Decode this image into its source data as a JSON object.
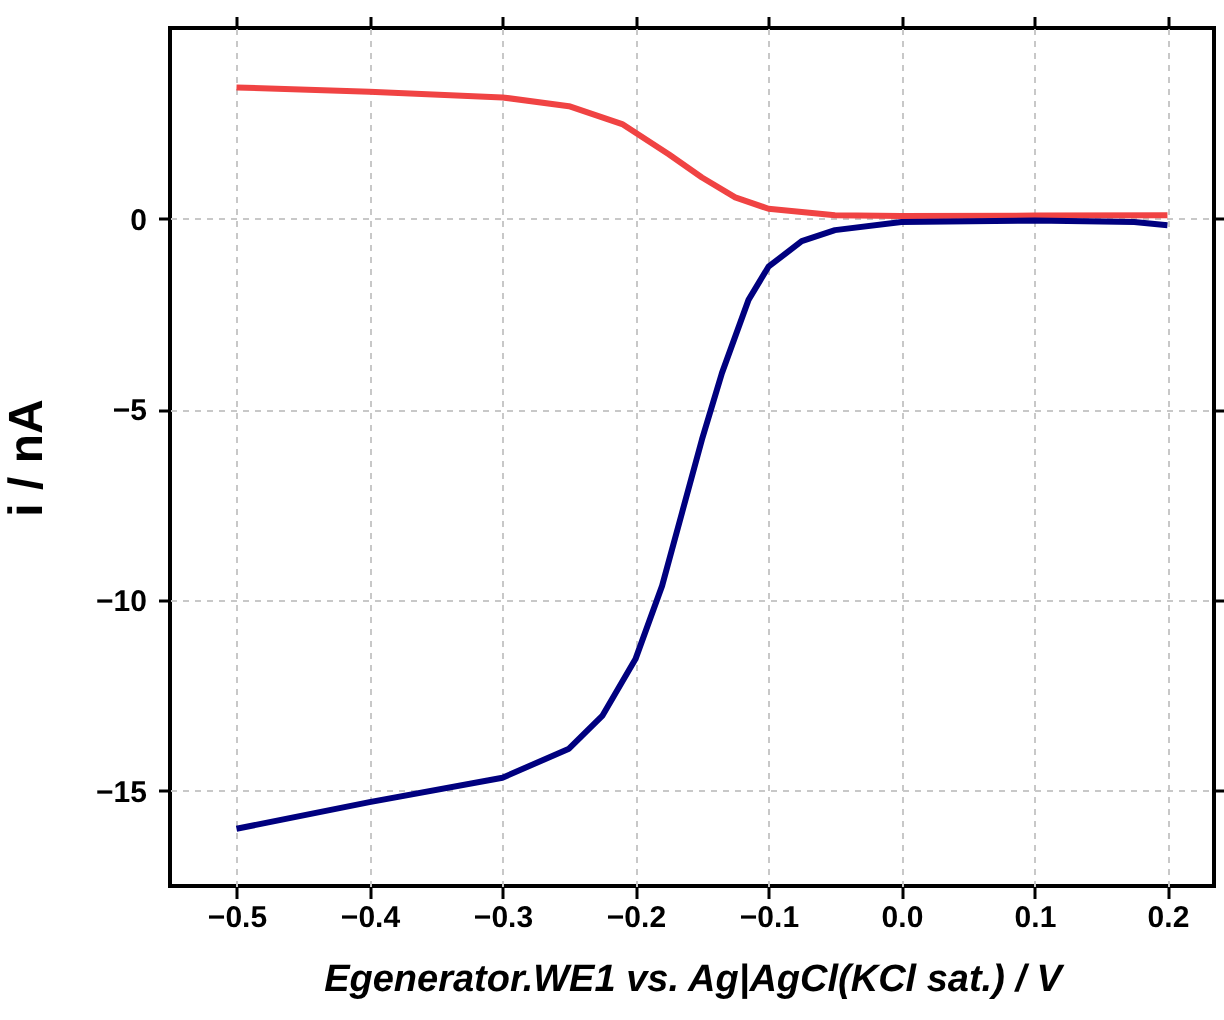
{
  "chart_data": {
    "type": "line",
    "xlabel": "Egenerator.WE1 vs. Ag|AgCl(KCl sat.) / V",
    "ylabel": "i / nA",
    "xlim": [
      -0.55,
      0.235
    ],
    "ylim": [
      -17.5,
      5
    ],
    "xticks": [
      {
        "value": -0.5,
        "label": "−0.5"
      },
      {
        "value": -0.4,
        "label": "−0.4"
      },
      {
        "value": -0.3,
        "label": "−0.3"
      },
      {
        "value": -0.2,
        "label": "−0.2"
      },
      {
        "value": -0.1,
        "label": "−0.1"
      },
      {
        "value": 0,
        "label": "0.0"
      },
      {
        "value": 0.1,
        "label": "0.1"
      },
      {
        "value": 0.2,
        "label": "0.2"
      }
    ],
    "yticks": [
      {
        "value": -15,
        "label": "−15"
      },
      {
        "value": -10,
        "label": "−10"
      },
      {
        "value": -5,
        "label": "−5"
      },
      0
    ],
    "grid": true,
    "line_style": "solid",
    "marker": "none",
    "series": [
      {
        "color": "#f04343",
        "x": [
          -0.5,
          -0.4,
          -0.3,
          -0.25,
          -0.21,
          -0.175,
          -0.15,
          -0.125,
          -0.1,
          -0.05,
          0,
          0.1,
          0.2
        ],
        "values": [
          3.44,
          3.33,
          3.18,
          2.95,
          2.48,
          1.69,
          1.08,
          0.56,
          0.26,
          0.09,
          0.07,
          0.08,
          0.09
        ]
      },
      {
        "color": "#00007f",
        "x": [
          -0.5,
          -0.4,
          -0.3,
          -0.25,
          -0.225,
          -0.2,
          -0.18,
          -0.165,
          -0.15,
          -0.135,
          -0.115,
          -0.1,
          -0.075,
          -0.05,
          0,
          0.1,
          0.175,
          0.2
        ],
        "values": [
          -16.0,
          -15.3,
          -14.66,
          -13.9,
          -13.04,
          -11.55,
          -9.63,
          -7.71,
          -5.79,
          -4.05,
          -2.13,
          -1.26,
          -0.59,
          -0.3,
          -0.09,
          -0.05,
          -0.09,
          -0.17
        ]
      }
    ]
  }
}
